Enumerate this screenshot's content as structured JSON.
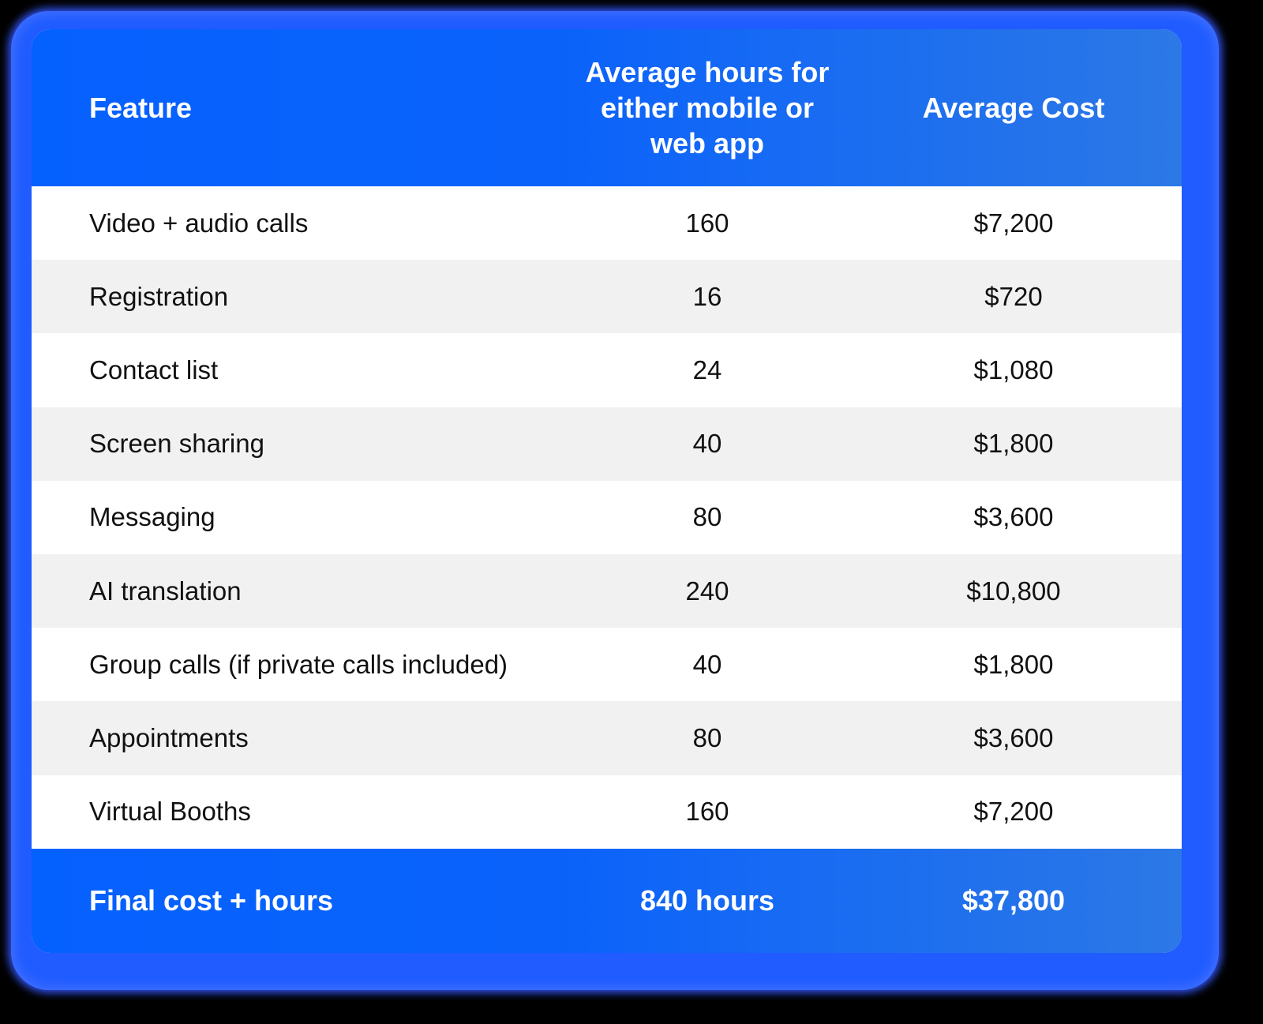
{
  "table": {
    "header": {
      "feature": "Feature",
      "hours": "Average hours for either mobile or web app",
      "cost": "Average Cost"
    },
    "rows": [
      {
        "feature": "Video + audio calls",
        "hours": "160",
        "cost": "$7,200"
      },
      {
        "feature": "Registration",
        "hours": "16",
        "cost": "$720"
      },
      {
        "feature": "Contact list",
        "hours": "24",
        "cost": "$1,080"
      },
      {
        "feature": "Screen sharing",
        "hours": "40",
        "cost": "$1,800"
      },
      {
        "feature": "Messaging",
        "hours": "80",
        "cost": "$3,600"
      },
      {
        "feature": "AI translation",
        "hours": "240",
        "cost": "$10,800"
      },
      {
        "feature": "Group calls (if private calls included)",
        "hours": "40",
        "cost": "$1,800"
      },
      {
        "feature": "Appointments",
        "hours": "80",
        "cost": "$3,600"
      },
      {
        "feature": "Virtual Booths",
        "hours": "160",
        "cost": "$7,200"
      }
    ],
    "footer": {
      "label": "Final cost + hours",
      "hours": "840 hours",
      "cost": "$37,800"
    }
  },
  "colors": {
    "header_blue": "#0561fe",
    "header_blue_right": "#2c78e6",
    "stripe_gray": "#f1f1f1",
    "glow": "#2a5cf0"
  }
}
